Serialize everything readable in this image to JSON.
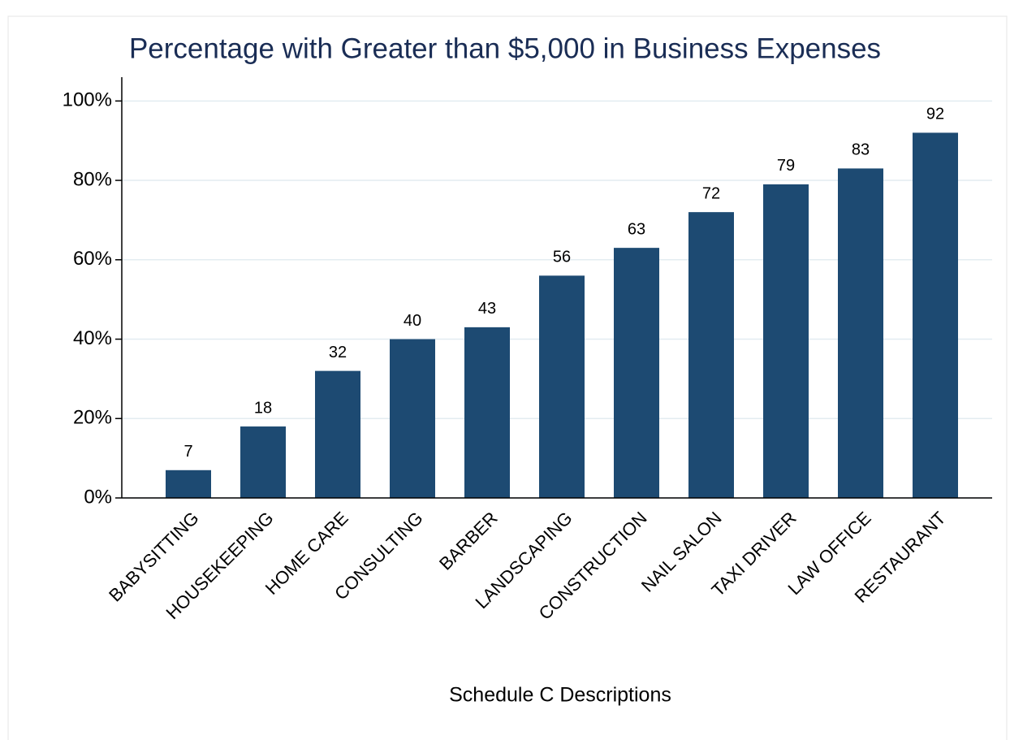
{
  "chart_data": {
    "type": "bar",
    "title": "Percentage with Greater than $5,000 in Business Expenses",
    "x_label": "Schedule C Descriptions",
    "categories": [
      "BABYSITTING",
      "HOUSEKEEPING",
      "HOME CARE",
      "CONSULTING",
      "BARBER",
      "LANDSCAPING",
      "CONSTRUCTION",
      "NAIL SALON",
      "TAXI DRIVER",
      "LAW OFFICE",
      "RESTAURANT"
    ],
    "values": [
      7,
      18,
      32,
      40,
      43,
      56,
      63,
      72,
      79,
      83,
      92
    ],
    "color": "#1d4a72",
    "ylim": [
      0,
      106
    ],
    "yticks": [
      {
        "value": 0,
        "label": "0%"
      },
      {
        "value": 20,
        "label": "20%"
      },
      {
        "value": 40,
        "label": "40%"
      },
      {
        "value": 60,
        "label": "60%"
      },
      {
        "value": 80,
        "label": "80%"
      },
      {
        "value": 100,
        "label": "100%"
      }
    ],
    "grid": true
  }
}
